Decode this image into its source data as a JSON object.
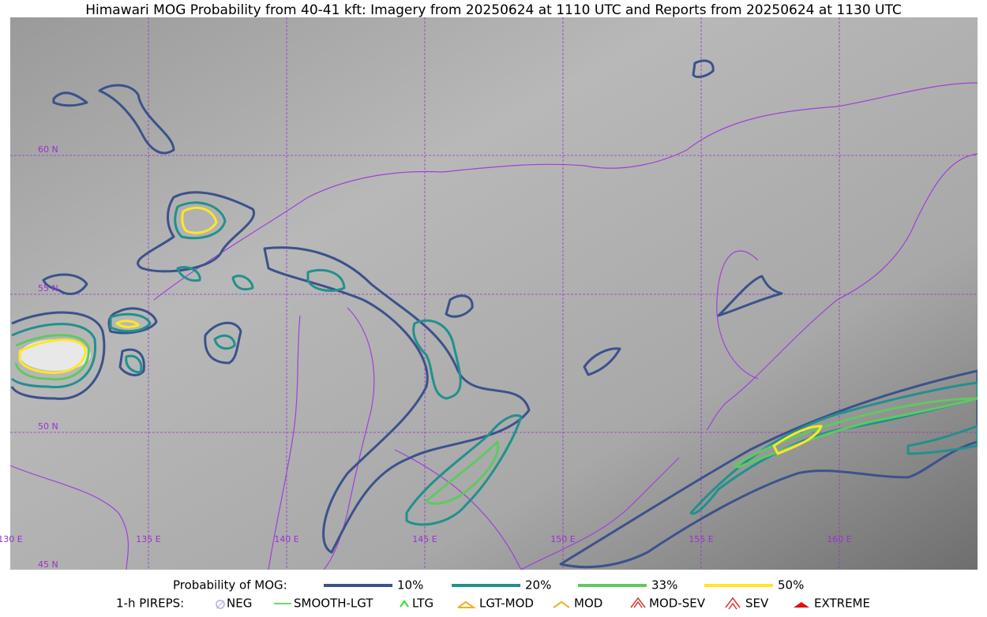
{
  "header": {
    "title": "Himawari MOG Probability from 40-41 kft: Imagery from 20250624 at 1110 UTC and Reports from 20250624 at 1130 UTC"
  },
  "map": {
    "lon_labels": [
      "130 E",
      "135 E",
      "140 E",
      "145 E",
      "150 E",
      "155 E",
      "160 E"
    ],
    "lat_labels": [
      "60 N",
      "55 N",
      "50 N",
      "45 N"
    ]
  },
  "legend": {
    "probability": {
      "title": "Probability of MOG:",
      "items": [
        {
          "label": "10%",
          "color": "#3b528b"
        },
        {
          "label": "20%",
          "color": "#21918c"
        },
        {
          "label": "33%",
          "color": "#5ec962"
        },
        {
          "label": "50%",
          "color": "#fde725"
        }
      ]
    },
    "pireps": {
      "title": "1-h PIREPS:",
      "items": [
        "NEG",
        "SMOOTH-LGT",
        "LTG",
        "LGT-MOD",
        "MOD",
        "MOD-SEV",
        "SEV",
        "EXTREME"
      ]
    }
  }
}
